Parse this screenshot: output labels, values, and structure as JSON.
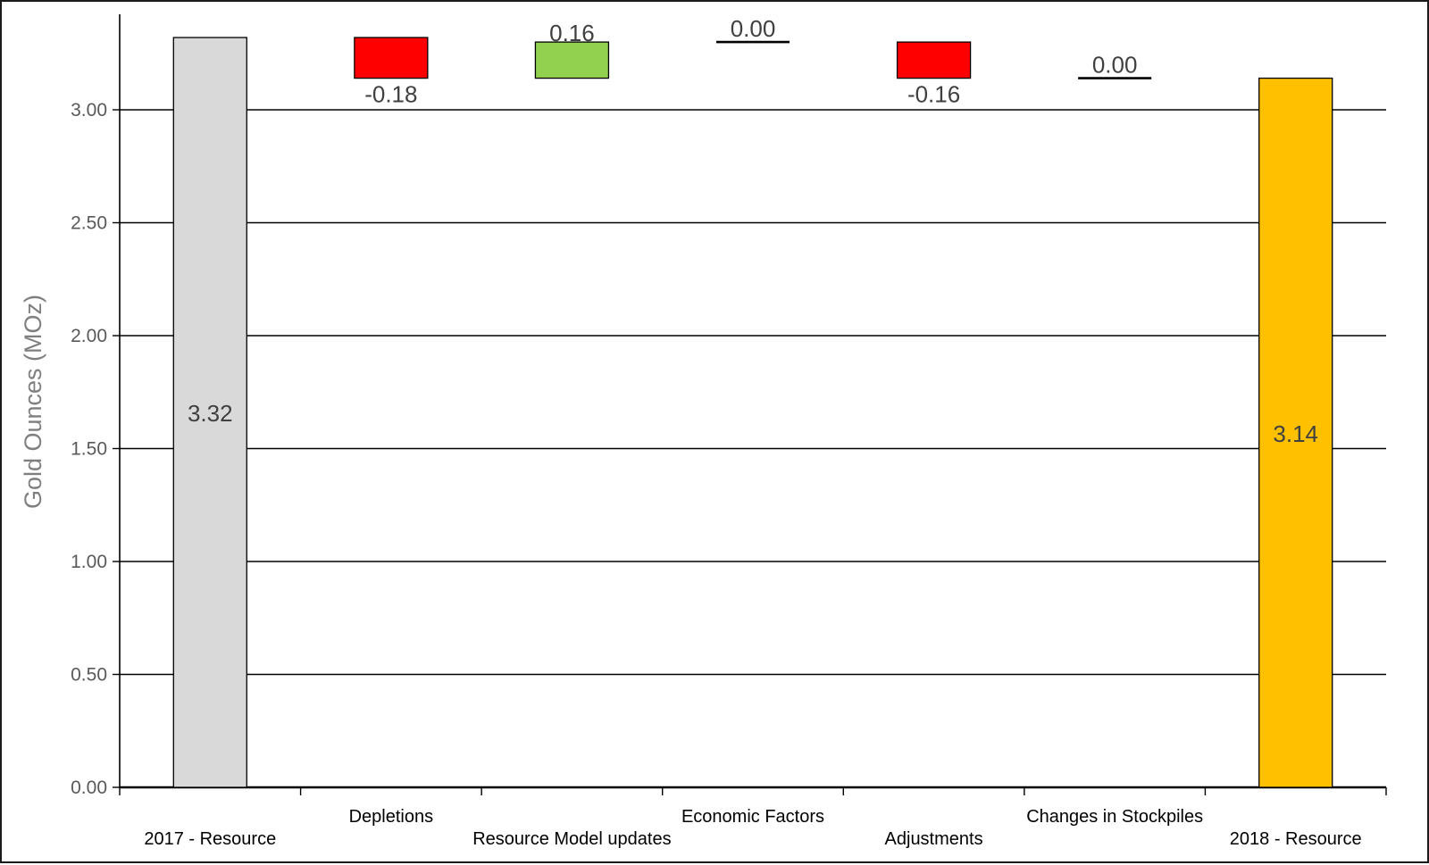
{
  "chart_data": {
    "type": "waterfall",
    "title": "",
    "xlabel": "",
    "ylabel": "Gold Ounces (MOz)",
    "ylim": [
      0,
      3.5
    ],
    "yticks": [
      0,
      0.5,
      1.0,
      1.5,
      2.0,
      2.5,
      3.0
    ],
    "ytick_labels": [
      "0.00",
      "0.50",
      "1.00",
      "1.50",
      "2.00",
      "2.50",
      "3.00"
    ],
    "grid": true,
    "categories": [
      "2017 - Resource",
      "Depletions",
      "Resource Model updates",
      "Economic Factors",
      "Adjustments",
      "Changes in Stockpiles",
      "2018 - Resource"
    ],
    "values": [
      3.32,
      -0.18,
      0.16,
      0.0,
      -0.16,
      0.0,
      3.14
    ],
    "bar_kinds": [
      "total",
      "delta",
      "delta",
      "delta",
      "delta",
      "delta",
      "total"
    ],
    "data_labels": [
      "3.32",
      "-0.18",
      "0.16",
      "0.00",
      "-0.16",
      "0.00",
      "3.14"
    ],
    "colors": {
      "start_total": "#d9d9d9",
      "end_total": "#ffc000",
      "decrease": "#ff0000",
      "increase": "#92d050",
      "zero_line": "#000000",
      "grid": "#000000",
      "label_text": "#404040",
      "axis_text": "#595959"
    }
  }
}
